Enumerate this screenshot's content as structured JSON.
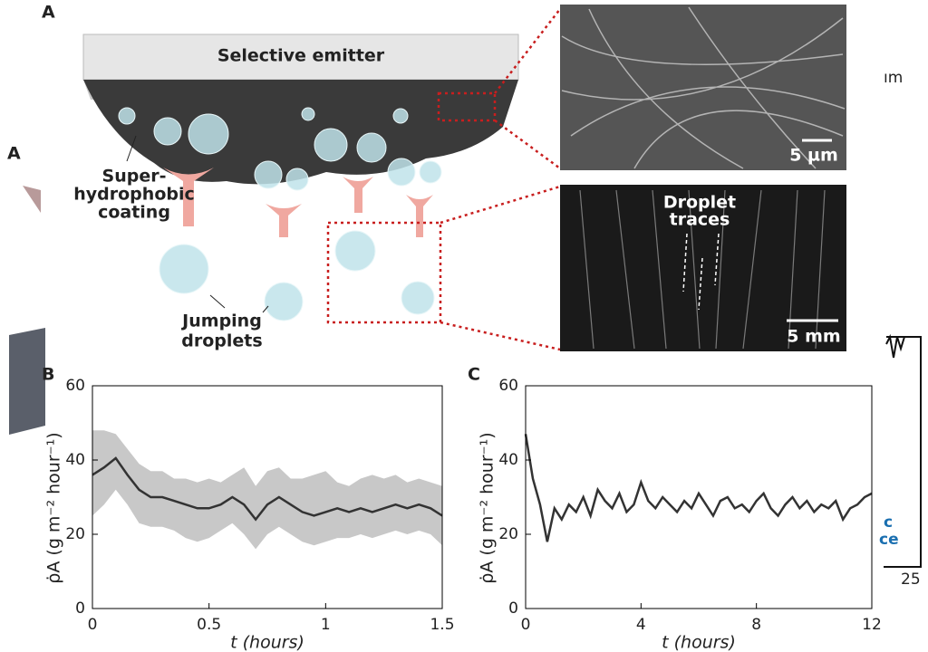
{
  "panel_a": {
    "letter": "A",
    "emitter": "Selective emitter",
    "coating": [
      "Super-",
      "hydrophobic",
      "coating"
    ],
    "droplets": [
      "Jumping",
      "droplets"
    ],
    "traces": [
      "Droplet",
      "traces"
    ],
    "scale_top": "5 µm",
    "scale_bottom": "5 mm"
  },
  "background_fragments": [
    "A",
    "ım",
    "c",
    "ce",
    "25"
  ],
  "chart_data": [
    {
      "type": "line",
      "panel": "B",
      "xlabel": "t (hours)",
      "ylabel": "ρ̇A (g m⁻² hour⁻¹)",
      "color": "#333333",
      "band_color": "#c8c8c8",
      "x": [
        0,
        0.05,
        0.1,
        0.15,
        0.2,
        0.25,
        0.3,
        0.35,
        0.4,
        0.45,
        0.5,
        0.55,
        0.6,
        0.65,
        0.7,
        0.75,
        0.8,
        0.85,
        0.9,
        0.95,
        1.0,
        1.05,
        1.1,
        1.15,
        1.2,
        1.25,
        1.3,
        1.35,
        1.4,
        1.45,
        1.5
      ],
      "values": [
        36,
        38,
        40.5,
        36,
        32,
        30,
        30,
        29,
        28,
        27,
        27,
        28,
        30,
        28,
        24,
        28,
        30,
        28,
        26,
        25,
        26,
        27,
        26,
        27,
        26,
        27,
        28,
        27,
        28,
        27,
        25
      ],
      "band_upper": [
        48,
        48,
        47,
        43,
        39,
        37,
        37,
        35,
        35,
        34,
        35,
        34,
        36,
        38,
        33,
        37,
        38,
        35,
        35,
        36,
        37,
        34,
        33,
        35,
        36,
        35,
        36,
        34,
        35,
        34,
        33
      ],
      "band_lower": [
        25,
        28,
        32,
        28,
        23,
        22,
        22,
        21,
        19,
        18,
        19,
        21,
        23,
        20,
        16,
        20,
        22,
        20,
        18,
        17,
        18,
        19,
        19,
        20,
        19,
        20,
        21,
        20,
        21,
        20,
        17
      ],
      "xlim": [
        0,
        1.5
      ],
      "xticks": [
        0,
        0.5,
        1,
        1.5
      ],
      "ylim": [
        0,
        60
      ],
      "yticks": [
        0,
        20,
        40,
        60
      ]
    },
    {
      "type": "line",
      "panel": "C",
      "xlabel": "t (hours)",
      "ylabel": "ρ̇A (g m⁻² hour⁻¹)",
      "color": "#333333",
      "x": [
        0,
        0.25,
        0.5,
        0.75,
        1,
        1.25,
        1.5,
        1.75,
        2,
        2.25,
        2.5,
        2.75,
        3,
        3.25,
        3.5,
        3.75,
        4,
        4.25,
        4.5,
        4.75,
        5,
        5.25,
        5.5,
        5.75,
        6,
        6.25,
        6.5,
        6.75,
        7,
        7.25,
        7.5,
        7.75,
        8,
        8.25,
        8.5,
        8.75,
        9,
        9.25,
        9.5,
        9.75,
        10,
        10.25,
        10.5,
        10.75,
        11,
        11.25,
        11.5,
        11.75,
        12
      ],
      "values": [
        47,
        35,
        28,
        18,
        27,
        24,
        28,
        26,
        30,
        25,
        32,
        29,
        27,
        31,
        26,
        28,
        34,
        29,
        27,
        30,
        28,
        26,
        29,
        27,
        31,
        28,
        25,
        29,
        30,
        27,
        28,
        26,
        29,
        31,
        27,
        25,
        28,
        30,
        27,
        29,
        26,
        28,
        27,
        29,
        24,
        27,
        28,
        30,
        31
      ],
      "xlim": [
        0,
        12
      ],
      "xticks": [
        0,
        4,
        8,
        12
      ],
      "ylim": [
        0,
        60
      ],
      "yticks": [
        0,
        20,
        40,
        60
      ]
    }
  ]
}
